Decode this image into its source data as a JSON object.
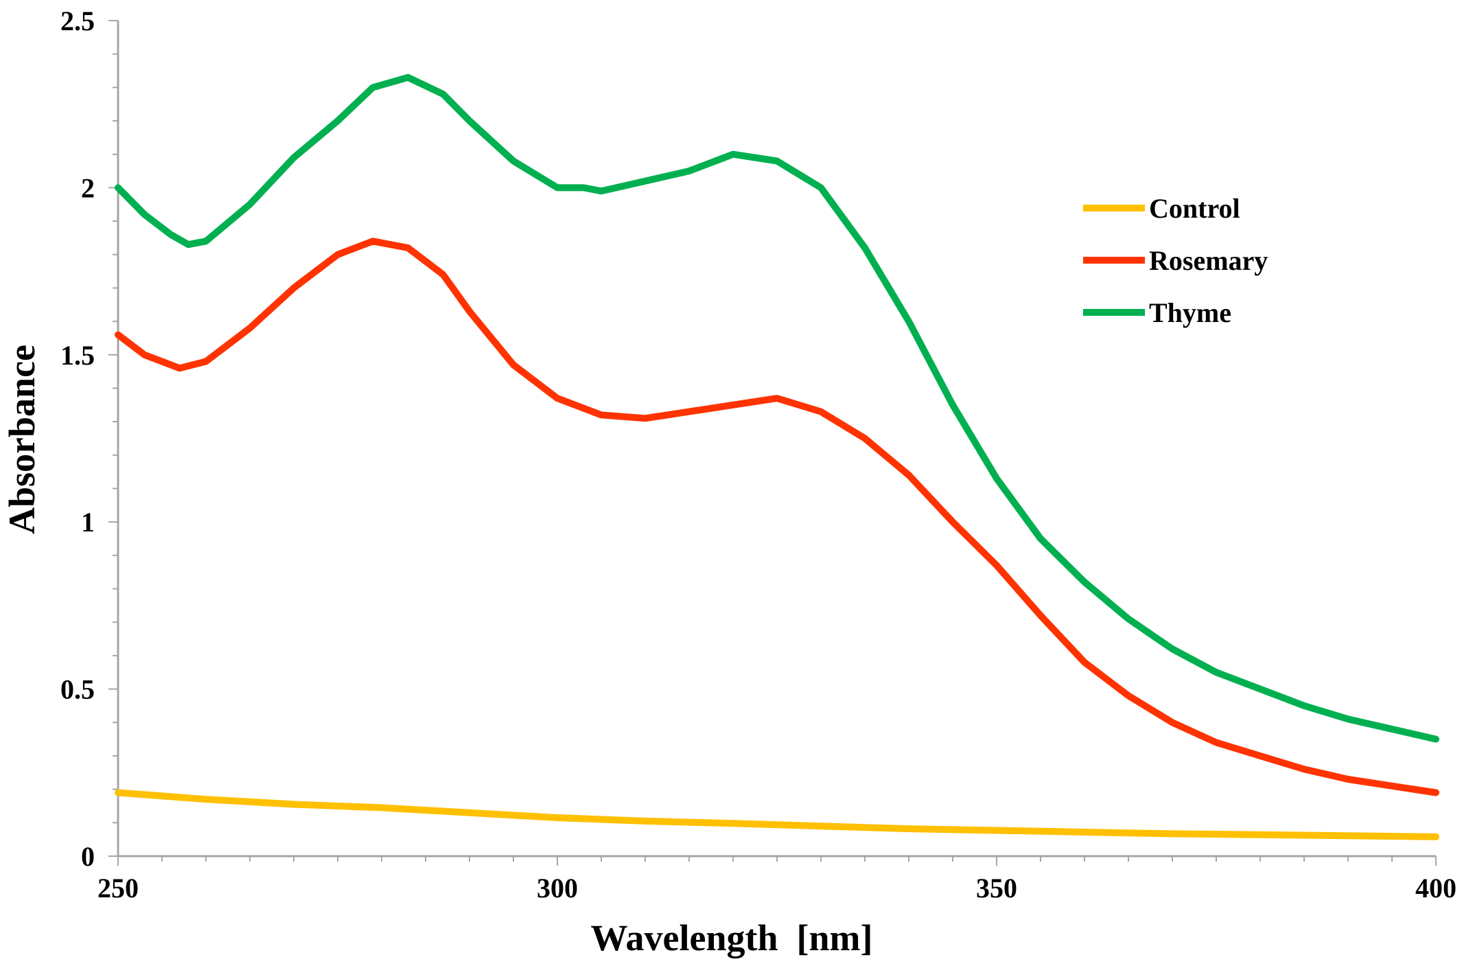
{
  "chart_data": {
    "type": "line",
    "title": "",
    "xlabel": "Wavelength  [nm]",
    "ylabel": "Absorbance",
    "xlim": [
      250,
      400
    ],
    "ylim": [
      0,
      2.5
    ],
    "x_ticks": [
      250,
      300,
      350,
      400
    ],
    "x_tick_labels": [
      "250",
      "300",
      "350",
      "400"
    ],
    "y_ticks": [
      0,
      0.5,
      1,
      1.5,
      2,
      2.5
    ],
    "y_tick_labels": [
      "0",
      "0.5",
      "1",
      "1.5",
      "2",
      "2.5"
    ],
    "x_minor_step": 5,
    "y_minor_step": 0.1,
    "grid": false,
    "legend_position": "right",
    "series": [
      {
        "name": "Control",
        "color": "#FFC000",
        "x": [
          250,
          260,
          270,
          280,
          290,
          300,
          310,
          320,
          330,
          340,
          350,
          360,
          370,
          380,
          390,
          400
        ],
        "y": [
          0.19,
          0.17,
          0.155,
          0.145,
          0.13,
          0.115,
          0.105,
          0.098,
          0.09,
          0.082,
          0.077,
          0.072,
          0.067,
          0.064,
          0.061,
          0.058
        ]
      },
      {
        "name": "Rosemary",
        "color": "#FF3300",
        "x": [
          250,
          253,
          257,
          260,
          265,
          270,
          275,
          279,
          283,
          287,
          290,
          295,
          300,
          305,
          310,
          315,
          320,
          325,
          330,
          335,
          340,
          345,
          350,
          355,
          360,
          365,
          370,
          375,
          380,
          385,
          390,
          395,
          400
        ],
        "y": [
          1.56,
          1.5,
          1.46,
          1.48,
          1.58,
          1.7,
          1.8,
          1.84,
          1.82,
          1.74,
          1.63,
          1.47,
          1.37,
          1.32,
          1.31,
          1.33,
          1.35,
          1.37,
          1.33,
          1.25,
          1.14,
          1.0,
          0.87,
          0.72,
          0.58,
          0.48,
          0.4,
          0.34,
          0.3,
          0.26,
          0.23,
          0.21,
          0.19
        ]
      },
      {
        "name": "Thyme",
        "color": "#00B050",
        "x": [
          250,
          253,
          256,
          258,
          260,
          265,
          270,
          275,
          279,
          283,
          287,
          290,
          295,
          300,
          303,
          305,
          310,
          315,
          320,
          325,
          330,
          335,
          340,
          345,
          350,
          355,
          360,
          365,
          370,
          375,
          380,
          385,
          390,
          395,
          400
        ],
        "y": [
          2.0,
          1.92,
          1.86,
          1.83,
          1.84,
          1.95,
          2.09,
          2.2,
          2.3,
          2.33,
          2.28,
          2.2,
          2.08,
          2.0,
          2.0,
          1.99,
          2.02,
          2.05,
          2.1,
          2.08,
          2.0,
          1.82,
          1.6,
          1.35,
          1.13,
          0.95,
          0.82,
          0.71,
          0.62,
          0.55,
          0.5,
          0.45,
          0.41,
          0.38,
          0.35
        ]
      }
    ]
  }
}
